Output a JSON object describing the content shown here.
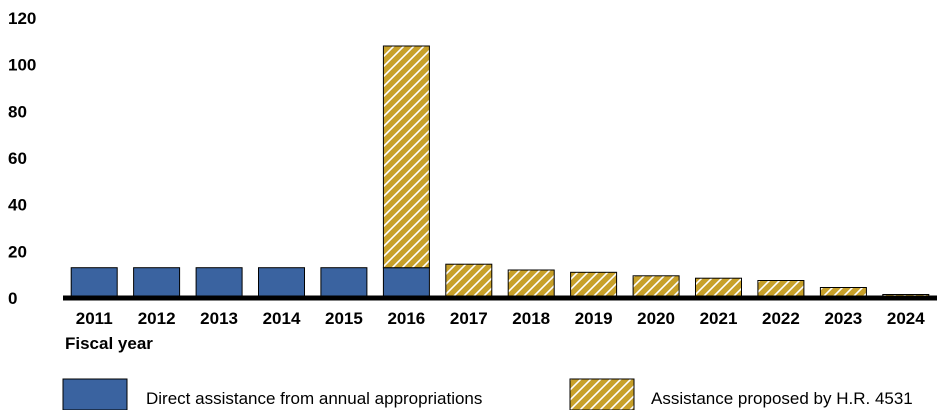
{
  "chart_data": {
    "type": "bar",
    "stacked": true,
    "categories": [
      "2011",
      "2012",
      "2013",
      "2014",
      "2015",
      "2016",
      "2017",
      "2018",
      "2019",
      "2020",
      "2021",
      "2022",
      "2023",
      "2024"
    ],
    "series": [
      {
        "name": "Direct assistance from annual appropriations",
        "color": "#3a63a0",
        "pattern": "solid",
        "values": [
          13,
          13,
          13,
          13,
          13,
          13,
          0,
          0,
          0,
          0,
          0,
          0,
          0,
          0
        ]
      },
      {
        "name": "Assistance proposed by H.R. 4531",
        "color": "#c7a02a",
        "pattern": "diagonal-hatch",
        "values": [
          0,
          0,
          0,
          0,
          0,
          95,
          14.5,
          12,
          11,
          9.5,
          8.5,
          7.5,
          4.5,
          1.5
        ]
      }
    ],
    "yticks": [
      0,
      20,
      40,
      60,
      80,
      100,
      120
    ],
    "ylim": [
      0,
      120
    ],
    "xlabel": "Fiscal year",
    "ylabel": "",
    "title": "",
    "grid": false,
    "legend": "bottom"
  }
}
